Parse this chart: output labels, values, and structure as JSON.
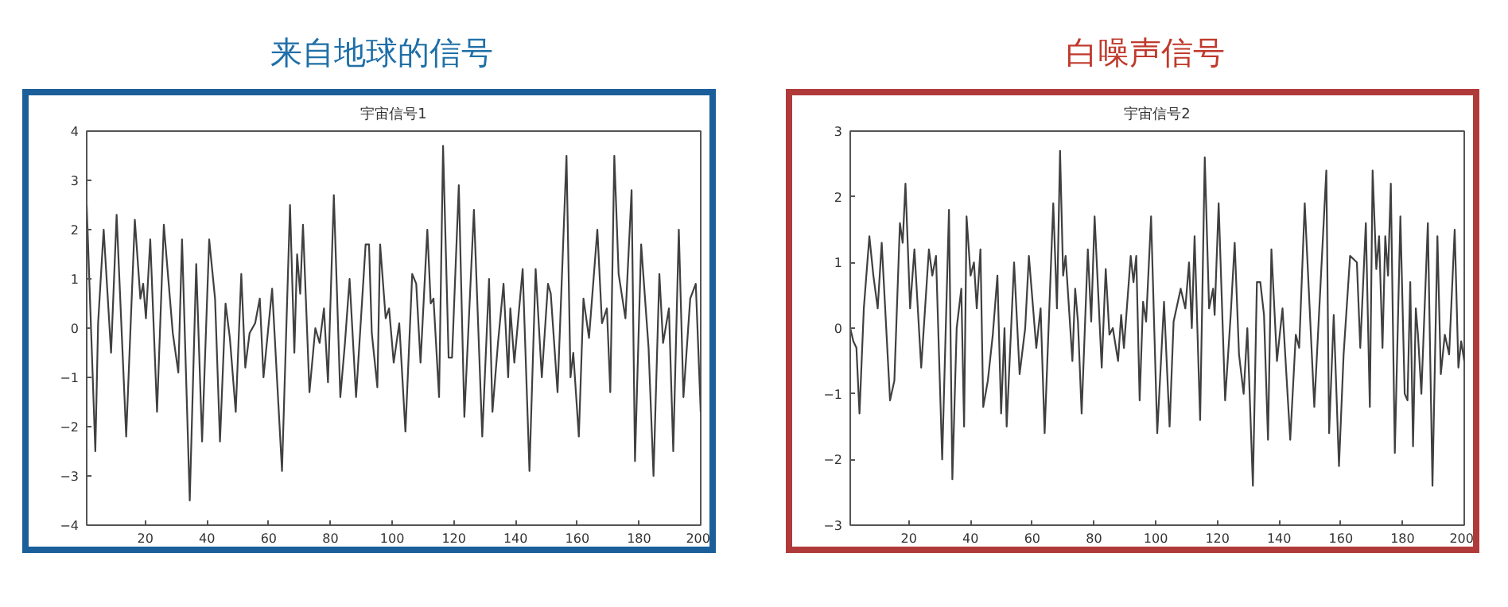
{
  "chart_data": [
    {
      "type": "line",
      "title": "来自地球的信号",
      "subtitle": "宇宙信号1",
      "xlim": [
        1,
        200
      ],
      "ylim": [
        -4,
        4
      ],
      "xticks": [
        20,
        40,
        60,
        80,
        100,
        120,
        140,
        160,
        180,
        200
      ],
      "yticks": [
        -4,
        -3,
        -2,
        -1,
        0,
        1,
        2,
        3,
        4
      ],
      "grid": false,
      "marker": "none",
      "line_style": "solid",
      "series": [
        {
          "color": "#404040",
          "x": [
            1,
            3.8,
            4.7,
            6.5,
            8.9,
            10.7,
            13.8,
            16.6,
            18.4,
            19.3,
            20.2,
            21.6,
            23.8,
            26,
            28.9,
            30.7,
            31.9,
            34.4,
            36.5,
            38.4,
            40.7,
            42.6,
            44.2,
            46,
            47.4,
            49.3,
            51.1,
            52.4,
            53.8,
            55.6,
            57.1,
            58.3,
            61.1,
            64.3,
            66.9,
            68.3,
            69.2,
            70.2,
            71.1,
            73.2,
            75.1,
            76.5,
            77.9,
            79.2,
            81.1,
            83.2,
            84.7,
            86.2,
            88.3,
            91.4,
            92.5,
            93.4,
            95.2,
            96.1,
            97.9,
            99,
            100.5,
            102.3,
            104.3,
            106.5,
            107.8,
            109.2,
            111.4,
            112.5,
            113.4,
            115.2,
            116.5,
            118.3,
            119.4,
            121.6,
            123.4,
            126.5,
            129.2,
            131.4,
            132.5,
            134.3,
            136.1,
            137.6,
            138.3,
            139.6,
            142.3,
            144.5,
            146.5,
            148.5,
            150.5,
            151.4,
            153.6,
            156.5,
            157.8,
            158.7,
            160.5,
            162,
            163.8,
            166.5,
            168,
            169.6,
            170.7,
            172,
            173.4,
            175.6,
            177.6,
            178.7,
            180.7,
            183.1,
            184.7,
            186.6,
            187.8,
            189.7,
            191.1,
            192.9,
            194.4,
            196.6,
            198.4,
            200
          ],
          "values": [
            2.5,
            -2.5,
            0.1,
            2.0,
            -0.5,
            2.3,
            -2.2,
            2.2,
            0.6,
            0.9,
            0.2,
            1.8,
            -1.7,
            2.1,
            -0.1,
            -0.9,
            1.8,
            -3.5,
            1.3,
            -2.3,
            1.8,
            0.6,
            -2.3,
            0.5,
            -0.2,
            -1.7,
            1.1,
            -0.8,
            -0.1,
            0.1,
            0.6,
            -1.0,
            0.8,
            -2.9,
            2.5,
            -0.5,
            1.5,
            0.7,
            2.1,
            -1.3,
            0.0,
            -0.3,
            0.4,
            -1.1,
            2.7,
            -1.4,
            -0.3,
            1.0,
            -1.4,
            1.7,
            1.7,
            -0.1,
            -1.2,
            1.7,
            0.2,
            0.4,
            -0.7,
            0.1,
            -2.1,
            1.1,
            0.9,
            -0.7,
            2.0,
            0.5,
            0.6,
            -1.4,
            3.7,
            -0.6,
            -0.6,
            2.9,
            -1.8,
            2.4,
            -2.2,
            1.0,
            -1.7,
            -0.3,
            0.9,
            -1.0,
            0.4,
            -0.7,
            1.2,
            -2.9,
            1.2,
            -1.0,
            0.9,
            0.7,
            -1.3,
            3.5,
            -1.0,
            -0.5,
            -2.2,
            0.6,
            -0.2,
            2.0,
            0.1,
            0.4,
            -1.3,
            3.5,
            1.1,
            0.2,
            2.8,
            -2.7,
            1.7,
            -0.4,
            -3.0,
            1.1,
            -0.3,
            0.4,
            -2.5,
            2.0,
            -1.4,
            0.6,
            0.9,
            -1.7
          ]
        }
      ]
    },
    {
      "type": "line",
      "title": "白噪声信号",
      "subtitle": "宇宙信号2",
      "xlim": [
        1,
        200
      ],
      "ylim": [
        -3,
        3
      ],
      "xticks": [
        20,
        40,
        60,
        80,
        100,
        120,
        140,
        160,
        180,
        200
      ],
      "yticks": [
        -3,
        -2,
        -1,
        0,
        1,
        2,
        3
      ],
      "grid": false,
      "marker": "none",
      "line_style": "solid",
      "series": [
        {
          "color": "#404040",
          "x": [
            1,
            2,
            3,
            4,
            5.4,
            7.2,
            8.5,
            9.9,
            11.2,
            13.9,
            15.3,
            17.1,
            18,
            18.9,
            20.4,
            21.8,
            24,
            26.5,
            27.6,
            28.8,
            30.8,
            33,
            34.1,
            35.5,
            37,
            37.9,
            38.7,
            40,
            41.1,
            42,
            43.2,
            44.1,
            45.6,
            47.2,
            48.7,
            49.9,
            51,
            51.7,
            54.1,
            55.9,
            57.7,
            58.9,
            61.3,
            62.7,
            64,
            66.8,
            68,
            69,
            70,
            70.8,
            73,
            73.9,
            74.8,
            76,
            78,
            79.1,
            80.2,
            82.5,
            83.8,
            85,
            86.1,
            87.8,
            88.8,
            89.7,
            91.9,
            92.8,
            93.7,
            94.8,
            95.9,
            96.9,
            98.5,
            100.5,
            102.7,
            104.5,
            105.8,
            108.1,
            109.6,
            110.8,
            111.7,
            112.6,
            114.4,
            115.9,
            117.3,
            118.6,
            119.1,
            120.4,
            122.5,
            124.3,
            125.6,
            127,
            128.5,
            129.7,
            131.5,
            132.8,
            133.9,
            135.1,
            136.4,
            137.5,
            139.3,
            141.1,
            143.6,
            145.4,
            146.5,
            148.3,
            151.4,
            155.3,
            156.2,
            157.7,
            159.4,
            160.9,
            163,
            165.2,
            166.3,
            168.1,
            169.4,
            170.3,
            171.5,
            172.4,
            173.5,
            174.4,
            175.3,
            176.2,
            177.5,
            179.3,
            180.7,
            181.6,
            182.5,
            183.4,
            184.3,
            185,
            186.1,
            188.2,
            189.7,
            191.3,
            192.4,
            193.7,
            195.1,
            196.9,
            198.1,
            199,
            200
          ],
          "values": [
            0.0,
            -0.2,
            -0.3,
            -1.3,
            0.3,
            1.4,
            0.8,
            0.3,
            1.3,
            -1.1,
            -0.8,
            1.6,
            1.3,
            2.2,
            0.3,
            1.2,
            -0.6,
            1.2,
            0.8,
            1.1,
            -2.0,
            1.8,
            -2.3,
            0.0,
            0.6,
            -1.5,
            1.7,
            0.8,
            1.0,
            0.3,
            1.2,
            -1.2,
            -0.8,
            -0.1,
            0.8,
            -1.3,
            0.0,
            -1.5,
            1.0,
            -0.7,
            0.0,
            1.1,
            -0.3,
            0.3,
            -1.6,
            1.9,
            0.3,
            2.7,
            0.8,
            1.1,
            -0.5,
            0.6,
            0.1,
            -1.3,
            1.2,
            0.1,
            1.7,
            -0.6,
            0.9,
            -0.1,
            0.0,
            -0.5,
            0.2,
            -0.3,
            1.1,
            0.7,
            1.1,
            -1.1,
            0.4,
            0.1,
            1.7,
            -1.6,
            0.4,
            -1.5,
            0.1,
            0.6,
            0.3,
            1.0,
            0.0,
            1.4,
            -1.4,
            2.6,
            0.3,
            0.6,
            0.2,
            1.9,
            -1.1,
            0.2,
            1.3,
            -0.4,
            -1.0,
            0.0,
            -2.4,
            0.7,
            0.7,
            0.2,
            -1.7,
            1.2,
            -0.5,
            0.3,
            -1.7,
            -0.1,
            -0.3,
            1.9,
            -1.2,
            2.4,
            -1.6,
            0.2,
            -2.1,
            -0.4,
            1.1,
            1.0,
            -0.3,
            1.6,
            -1.2,
            2.4,
            0.9,
            1.4,
            -0.3,
            1.4,
            0.8,
            2.2,
            -1.9,
            1.7,
            -1.0,
            -1.1,
            0.7,
            -1.8,
            0.3,
            -0.1,
            -1.0,
            1.6,
            -2.4,
            1.4,
            -0.7,
            -0.1,
            -0.4,
            1.5,
            -0.6,
            -0.2,
            -0.5
          ]
        }
      ]
    }
  ]
}
